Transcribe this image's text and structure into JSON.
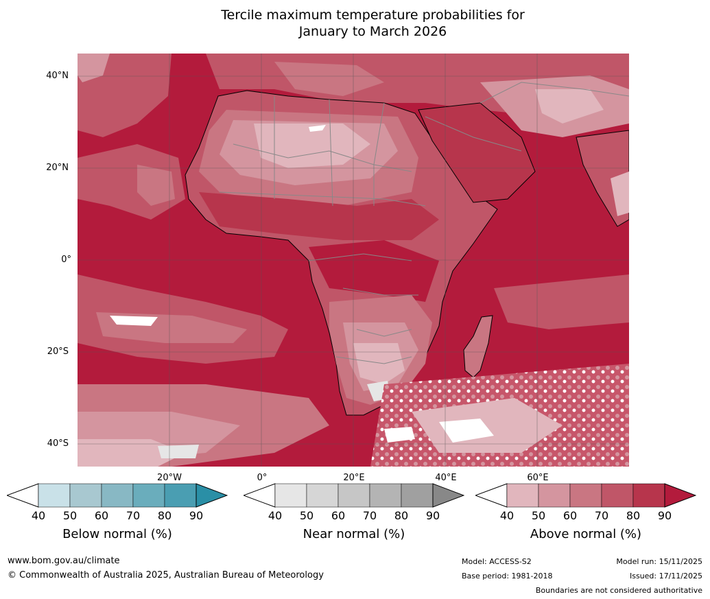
{
  "title_line1": "Tercile maximum temperature probabilities for",
  "title_line2": "January to March 2026",
  "latitude_labels": [
    "40°N",
    "20°N",
    "0°",
    "20°S",
    "40°S"
  ],
  "longitude_labels": [
    "20°W",
    "0°",
    "20°E",
    "40°E",
    "60°E"
  ],
  "legend": [
    {
      "name": "Below normal (%)",
      "ticks": [
        "40",
        "50",
        "60",
        "70",
        "80",
        "90"
      ],
      "colors": [
        "#ffffff",
        "#c9e1e8",
        "#a8c8d0",
        "#88b8c4",
        "#6aadbc",
        "#4a9eb2",
        "#2a8fa6"
      ]
    },
    {
      "name": "Near normal (%)",
      "ticks": [
        "40",
        "50",
        "60",
        "70",
        "80",
        "90"
      ],
      "colors": [
        "#ffffff",
        "#e6e6e6",
        "#d6d6d6",
        "#c6c6c6",
        "#b4b4b4",
        "#a0a0a0",
        "#888888"
      ]
    },
    {
      "name": "Above normal (%)",
      "ticks": [
        "40",
        "50",
        "60",
        "70",
        "80",
        "90"
      ],
      "colors": [
        "#ffffff",
        "#e1b6bd",
        "#d4959f",
        "#c97682",
        "#c05668",
        "#b7354c",
        "#b31b3c"
      ]
    }
  ],
  "footer": {
    "website": "www.bom.gov.au/climate",
    "copyright": "© Commonwealth of Australia 2025, Australian Bureau of Meteorology",
    "model": "Model: ACCESS-S2",
    "base_period": "Base period: 1981-2018",
    "model_run": "Model run: 15/11/2025",
    "issued": "Issued: 17/11/2025",
    "disclaimer": "Boundaries are not considered authoritative"
  },
  "colors": {
    "ocean_above": "#b31b3c",
    "land_outline": "#000000",
    "borders": "#888888",
    "grid": "#555555"
  }
}
